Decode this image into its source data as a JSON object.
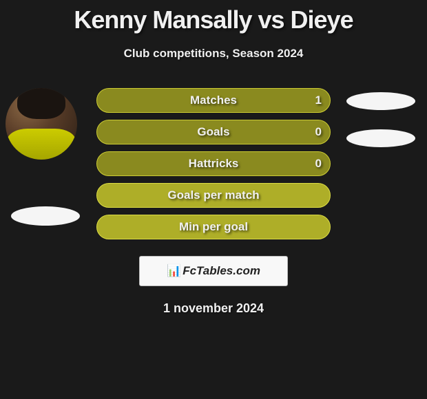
{
  "title": "Kenny Mansally vs Dieye",
  "subtitle": "Club competitions, Season 2024",
  "stats": [
    {
      "label": "Matches",
      "value": "1",
      "bg": "#8a8a1f",
      "border": "#cccc33"
    },
    {
      "label": "Goals",
      "value": "0",
      "bg": "#8a8a1f",
      "border": "#cccc33"
    },
    {
      "label": "Hattricks",
      "value": "0",
      "bg": "#8a8a1f",
      "border": "#cccc33"
    },
    {
      "label": "Goals per match",
      "value": "",
      "bg": "#aeae28",
      "border": "#dddd44"
    },
    {
      "label": "Min per goal",
      "value": "",
      "bg": "#aeae28",
      "border": "#dddd44"
    }
  ],
  "watermark": {
    "icon": "📊",
    "text": "FcTables.com"
  },
  "date": "1 november 2024",
  "colors": {
    "background": "#1a1a1a",
    "text": "#f0f0f0",
    "pill": "#f5f5f5"
  }
}
